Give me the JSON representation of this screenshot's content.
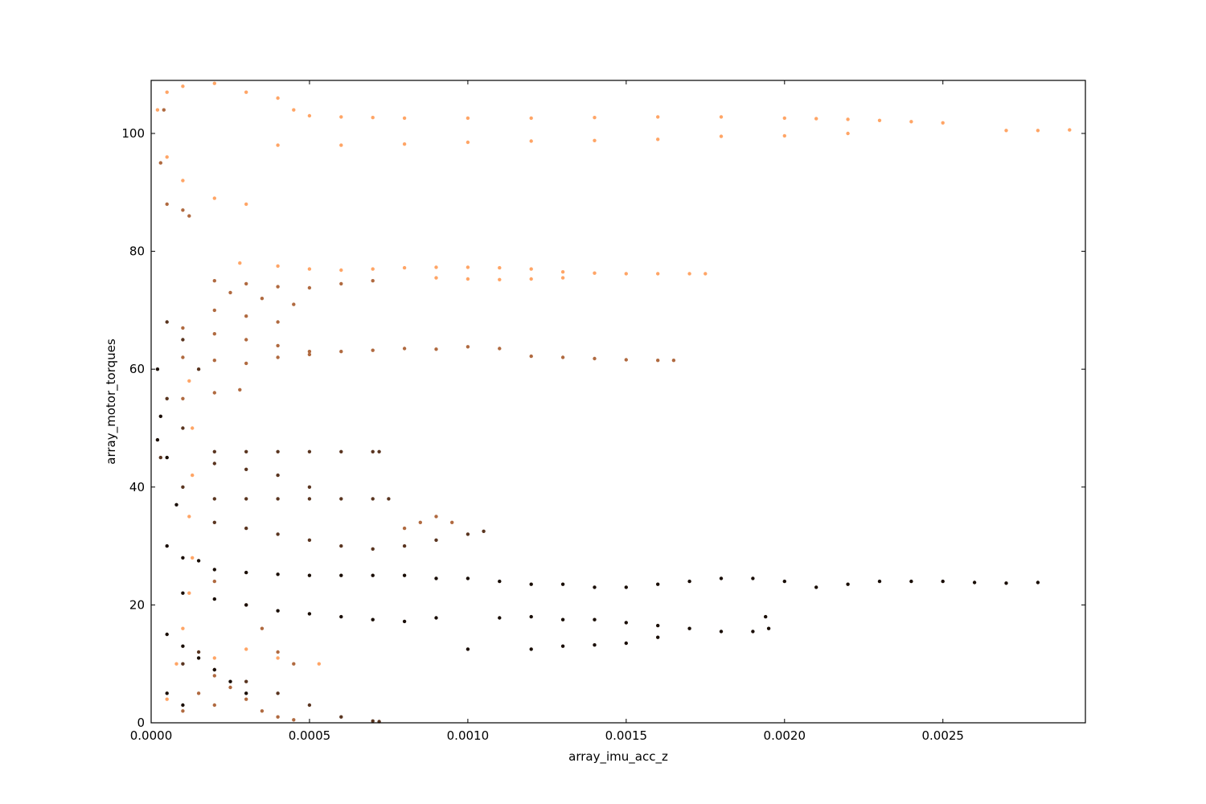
{
  "chart_data": {
    "type": "scatter",
    "title": "",
    "xlabel": "array_imu_acc_z",
    "ylabel": "array_motor_torques",
    "xlim": [
      0,
      0.00295
    ],
    "ylim": [
      0,
      109
    ],
    "xticks": [
      0,
      0.0005,
      0.001,
      0.0015,
      0.002,
      0.0025
    ],
    "xtick_labels": [
      "0.0000",
      "0.0005",
      "0.0010",
      "0.0015",
      "0.0020",
      "0.0025"
    ],
    "yticks": [
      0,
      20,
      40,
      60,
      80,
      100
    ],
    "ytick_labels": [
      "0",
      "20",
      "40",
      "60",
      "80",
      "100"
    ],
    "grid": false,
    "colormap": "copper",
    "color_range": [
      "#000000",
      "#ffc77f"
    ],
    "series": [
      {
        "color": "#ffa566",
        "points": [
          [
            2e-05,
            104
          ],
          [
            5e-05,
            107
          ],
          [
            0.0001,
            108
          ],
          [
            0.0002,
            108.5
          ],
          [
            0.0003,
            107
          ],
          [
            0.0004,
            106
          ],
          [
            0.00045,
            104
          ],
          [
            0.0005,
            103
          ],
          [
            0.0006,
            102.8
          ],
          [
            0.0007,
            102.7
          ],
          [
            0.0008,
            102.6
          ],
          [
            0.001,
            102.6
          ],
          [
            0.0012,
            102.6
          ],
          [
            0.0014,
            102.7
          ],
          [
            0.0016,
            102.8
          ],
          [
            0.0018,
            102.8
          ],
          [
            0.002,
            102.6
          ],
          [
            0.0021,
            102.5
          ],
          [
            0.0022,
            102.4
          ],
          [
            0.0023,
            102.2
          ],
          [
            0.0024,
            102
          ],
          [
            0.0025,
            101.8
          ],
          [
            0.0027,
            100.5
          ],
          [
            0.0028,
            100.5
          ],
          [
            0.0029,
            100.6
          ],
          [
            5e-05,
            96
          ],
          [
            0.0001,
            92
          ],
          [
            0.0002,
            89
          ],
          [
            0.0003,
            88
          ],
          [
            0.0004,
            98
          ],
          [
            0.0006,
            98
          ],
          [
            0.0008,
            98.2
          ],
          [
            0.001,
            98.5
          ],
          [
            0.0012,
            98.7
          ],
          [
            0.0014,
            98.8
          ],
          [
            0.0016,
            99
          ],
          [
            0.0018,
            99.5
          ],
          [
            0.002,
            99.6
          ],
          [
            0.0022,
            100
          ],
          [
            0.00028,
            78
          ],
          [
            0.0004,
            77.5
          ],
          [
            0.0005,
            77
          ],
          [
            0.0006,
            76.8
          ],
          [
            0.0007,
            77
          ],
          [
            0.0008,
            77.2
          ],
          [
            0.0009,
            77.3
          ],
          [
            0.001,
            77.3
          ],
          [
            0.0011,
            77.2
          ],
          [
            0.0012,
            77
          ],
          [
            0.0013,
            76.5
          ],
          [
            0.0014,
            76.3
          ],
          [
            0.0015,
            76.2
          ],
          [
            0.0016,
            76.2
          ],
          [
            0.0017,
            76.2
          ],
          [
            0.00175,
            76.2
          ],
          [
            0.0009,
            75.5
          ],
          [
            0.001,
            75.3
          ],
          [
            0.0011,
            75.2
          ],
          [
            0.0012,
            75.3
          ],
          [
            0.0013,
            75.5
          ],
          [
            0.00012,
            58
          ],
          [
            0.00013,
            50
          ],
          [
            0.00013,
            42
          ],
          [
            0.00012,
            35
          ],
          [
            0.00013,
            28
          ],
          [
            0.00012,
            22
          ],
          [
            0.0001,
            16
          ],
          [
            8e-05,
            10
          ],
          [
            5e-05,
            4
          ],
          [
            0.00053,
            10
          ],
          [
            0.0002,
            11
          ],
          [
            0.0003,
            12.5
          ],
          [
            0.0004,
            11
          ]
        ]
      },
      {
        "color": "#b06a40",
        "points": [
          [
            4e-05,
            104
          ],
          [
            3e-05,
            95
          ],
          [
            5e-05,
            88
          ],
          [
            0.0001,
            87
          ],
          [
            0.00012,
            86
          ],
          [
            0.0002,
            75
          ],
          [
            0.0003,
            74.5
          ],
          [
            0.0004,
            74
          ],
          [
            0.0005,
            73.8
          ],
          [
            0.0006,
            74.5
          ],
          [
            0.0007,
            75
          ],
          [
            0.00025,
            73
          ],
          [
            0.00035,
            72
          ],
          [
            0.00045,
            71
          ],
          [
            0.0002,
            70
          ],
          [
            0.0003,
            69
          ],
          [
            0.0004,
            68
          ],
          [
            0.0001,
            67
          ],
          [
            0.0002,
            66
          ],
          [
            0.0003,
            65
          ],
          [
            0.0004,
            64
          ],
          [
            0.0005,
            63
          ],
          [
            0.0006,
            63
          ],
          [
            0.0007,
            63.2
          ],
          [
            0.0008,
            63.5
          ],
          [
            0.0009,
            63.4
          ],
          [
            0.001,
            63.8
          ],
          [
            0.0011,
            63.5
          ],
          [
            0.0012,
            62.2
          ],
          [
            0.0013,
            62
          ],
          [
            0.0014,
            61.8
          ],
          [
            0.0015,
            61.6
          ],
          [
            0.0016,
            61.5
          ],
          [
            0.00165,
            61.5
          ],
          [
            0.0001,
            62
          ],
          [
            0.0002,
            61.5
          ],
          [
            0.0003,
            61
          ],
          [
            0.0004,
            62
          ],
          [
            0.0005,
            62.5
          ],
          [
            0.0001,
            55
          ],
          [
            0.0002,
            56
          ],
          [
            0.00028,
            56.5
          ],
          [
            0.0002,
            24
          ],
          [
            0.0003,
            20
          ],
          [
            0.00035,
            16
          ],
          [
            0.0004,
            12
          ],
          [
            0.00045,
            10
          ],
          [
            0.0002,
            8
          ],
          [
            0.00025,
            6
          ],
          [
            0.0003,
            4
          ],
          [
            0.00035,
            2
          ],
          [
            0.0004,
            1
          ],
          [
            0.00045,
            0.5
          ],
          [
            0.0001,
            2
          ],
          [
            0.00015,
            5
          ],
          [
            0.0002,
            3
          ],
          [
            0.0008,
            33
          ],
          [
            0.00085,
            34
          ],
          [
            0.0009,
            35
          ],
          [
            0.00095,
            34
          ]
        ]
      },
      {
        "color": "#5a3520",
        "points": [
          [
            5e-05,
            68
          ],
          [
            0.0001,
            65
          ],
          [
            0.00015,
            60
          ],
          [
            5e-05,
            55
          ],
          [
            0.0001,
            50
          ],
          [
            3e-05,
            45
          ],
          [
            0.0002,
            46
          ],
          [
            0.0003,
            46
          ],
          [
            0.0004,
            46
          ],
          [
            0.0005,
            46
          ],
          [
            0.0006,
            46
          ],
          [
            0.0007,
            46
          ],
          [
            0.00072,
            46
          ],
          [
            0.0002,
            44
          ],
          [
            0.0003,
            43
          ],
          [
            0.0004,
            42
          ],
          [
            0.0005,
            40
          ],
          [
            0.0001,
            40
          ],
          [
            0.0002,
            38
          ],
          [
            0.0003,
            38
          ],
          [
            0.0004,
            38
          ],
          [
            0.0005,
            38
          ],
          [
            0.0006,
            38
          ],
          [
            0.0007,
            38
          ],
          [
            0.00075,
            38
          ],
          [
            0.0002,
            34
          ],
          [
            0.0003,
            33
          ],
          [
            0.0004,
            32
          ],
          [
            0.0005,
            31
          ],
          [
            0.0006,
            30
          ],
          [
            0.0007,
            29.5
          ],
          [
            0.0008,
            30
          ],
          [
            0.0009,
            31
          ],
          [
            0.001,
            32
          ],
          [
            0.00105,
            32.5
          ],
          [
            0.0001,
            10
          ],
          [
            0.00015,
            12
          ],
          [
            0.0002,
            9
          ],
          [
            0.0003,
            7
          ],
          [
            0.0004,
            5
          ],
          [
            0.0005,
            3
          ],
          [
            0.0006,
            1
          ],
          [
            0.0007,
            0.3
          ],
          [
            0.00072,
            0.2
          ]
        ]
      },
      {
        "color": "#1a0e06",
        "points": [
          [
            2e-05,
            60
          ],
          [
            3e-05,
            52
          ],
          [
            2e-05,
            48
          ],
          [
            5e-05,
            45
          ],
          [
            8e-05,
            37
          ],
          [
            5e-05,
            30
          ],
          [
            0.0001,
            28
          ],
          [
            0.00015,
            27.5
          ],
          [
            0.0002,
            26
          ],
          [
            0.0003,
            25.5
          ],
          [
            0.0004,
            25.2
          ],
          [
            0.0005,
            25
          ],
          [
            0.0006,
            25
          ],
          [
            0.0007,
            25
          ],
          [
            0.0008,
            25
          ],
          [
            0.0009,
            24.5
          ],
          [
            0.001,
            24.5
          ],
          [
            0.0011,
            24
          ],
          [
            0.0012,
            23.5
          ],
          [
            0.0013,
            23.5
          ],
          [
            0.0014,
            23
          ],
          [
            0.0015,
            23
          ],
          [
            0.0016,
            23.5
          ],
          [
            0.0017,
            24
          ],
          [
            0.0018,
            24.5
          ],
          [
            0.0019,
            24.5
          ],
          [
            0.002,
            24
          ],
          [
            0.0021,
            23
          ],
          [
            0.0022,
            23.5
          ],
          [
            0.0023,
            24
          ],
          [
            0.0024,
            24
          ],
          [
            0.0025,
            24
          ],
          [
            0.0026,
            23.8
          ],
          [
            0.0027,
            23.7
          ],
          [
            0.0028,
            23.8
          ],
          [
            0.0001,
            22
          ],
          [
            0.0002,
            21
          ],
          [
            0.0003,
            20
          ],
          [
            0.0004,
            19
          ],
          [
            0.0005,
            18.5
          ],
          [
            0.0006,
            18
          ],
          [
            0.0007,
            17.5
          ],
          [
            0.0008,
            17.2
          ],
          [
            0.0009,
            17.8
          ],
          [
            0.0011,
            17.8
          ],
          [
            0.0012,
            18
          ],
          [
            0.0013,
            17.5
          ],
          [
            0.0014,
            17.5
          ],
          [
            0.0015,
            17
          ],
          [
            0.0016,
            16.5
          ],
          [
            0.0017,
            16
          ],
          [
            0.0018,
            15.5
          ],
          [
            0.0019,
            15.5
          ],
          [
            0.00195,
            16
          ],
          [
            0.00194,
            18
          ],
          [
            0.001,
            12.5
          ],
          [
            0.0012,
            12.5
          ],
          [
            0.0013,
            13
          ],
          [
            0.0014,
            13.2
          ],
          [
            0.0015,
            13.5
          ],
          [
            0.0016,
            14.5
          ],
          [
            5e-05,
            15
          ],
          [
            0.0001,
            13
          ],
          [
            0.00015,
            11
          ],
          [
            0.0002,
            9
          ],
          [
            0.00025,
            7
          ],
          [
            0.0003,
            5
          ],
          [
            5e-05,
            5
          ],
          [
            0.0001,
            3
          ]
        ]
      }
    ]
  }
}
